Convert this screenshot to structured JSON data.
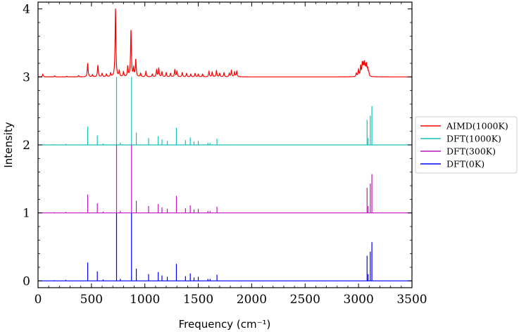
{
  "chart_data": {
    "type": "line",
    "title": "",
    "xlabel": "Frequency (cm⁻¹)",
    "ylabel": "Intensity",
    "xlim": [
      0,
      3500
    ],
    "ylim": [
      -0.1,
      4.1
    ],
    "xticks": [
      0,
      500,
      1000,
      1500,
      2000,
      2500,
      3000,
      3500
    ],
    "yticks": [
      0,
      1,
      2,
      3,
      4
    ],
    "grid": false,
    "legend_position": "outside-right",
    "series": [
      {
        "name": "AIMD(1000K)",
        "color": "#ff0000",
        "kind": "broadened",
        "baseline": 3.0,
        "peaks": [
          [
            45,
            0.04
          ],
          [
            155,
            0.015
          ],
          [
            270,
            0.01
          ],
          [
            380,
            0.02
          ],
          [
            465,
            0.2
          ],
          [
            510,
            0.03
          ],
          [
            560,
            0.17
          ],
          [
            600,
            0.05
          ],
          [
            640,
            0.04
          ],
          [
            680,
            0.05
          ],
          [
            725,
            1.0
          ],
          [
            760,
            0.08
          ],
          [
            800,
            0.07
          ],
          [
            840,
            0.15
          ],
          [
            870,
            0.68
          ],
          [
            895,
            0.12
          ],
          [
            915,
            0.25
          ],
          [
            960,
            0.05
          ],
          [
            1010,
            0.08
          ],
          [
            1070,
            0.04
          ],
          [
            1110,
            0.1
          ],
          [
            1130,
            0.12
          ],
          [
            1160,
            0.07
          ],
          [
            1200,
            0.06
          ],
          [
            1240,
            0.05
          ],
          [
            1280,
            0.1
          ],
          [
            1300,
            0.08
          ],
          [
            1350,
            0.06
          ],
          [
            1390,
            0.05
          ],
          [
            1430,
            0.04
          ],
          [
            1470,
            0.05
          ],
          [
            1500,
            0.04
          ],
          [
            1540,
            0.04
          ],
          [
            1600,
            0.08
          ],
          [
            1630,
            0.07
          ],
          [
            1670,
            0.09
          ],
          [
            1700,
            0.05
          ],
          [
            1740,
            0.06
          ],
          [
            1790,
            0.05
          ],
          [
            1810,
            0.09
          ],
          [
            1840,
            0.07
          ],
          [
            1860,
            0.08
          ],
          [
            2980,
            0.05
          ],
          [
            3000,
            0.1
          ],
          [
            3020,
            0.15
          ],
          [
            3035,
            0.18
          ],
          [
            3045,
            0.14
          ],
          [
            3055,
            0.18
          ],
          [
            3065,
            0.12
          ],
          [
            3075,
            0.16
          ],
          [
            3085,
            0.1
          ],
          [
            3095,
            0.06
          ]
        ]
      },
      {
        "name": "DFT(1000K)",
        "color": "#17bfbf",
        "kind": "sticks",
        "baseline": 2.0,
        "peaks": [
          [
            150,
            0.01
          ],
          [
            260,
            0.015
          ],
          [
            465,
            0.27
          ],
          [
            555,
            0.14
          ],
          [
            610,
            0.02
          ],
          [
            735,
            1.0
          ],
          [
            770,
            0.03
          ],
          [
            875,
            1.0
          ],
          [
            920,
            0.18
          ],
          [
            1035,
            0.1
          ],
          [
            1125,
            0.13
          ],
          [
            1160,
            0.08
          ],
          [
            1210,
            0.06
          ],
          [
            1295,
            0.25
          ],
          [
            1380,
            0.07
          ],
          [
            1425,
            0.11
          ],
          [
            1460,
            0.05
          ],
          [
            1500,
            0.06
          ],
          [
            1590,
            0.03
          ],
          [
            1610,
            0.03
          ],
          [
            1675,
            0.09
          ],
          [
            3080,
            0.37
          ],
          [
            3090,
            0.1
          ],
          [
            3110,
            0.43
          ],
          [
            3125,
            0.57
          ]
        ]
      },
      {
        "name": "DFT(300K)",
        "color": "#bf17bf",
        "kind": "sticks",
        "baseline": 1.0,
        "peaks": [
          [
            150,
            0.01
          ],
          [
            260,
            0.015
          ],
          [
            465,
            0.27
          ],
          [
            555,
            0.14
          ],
          [
            610,
            0.02
          ],
          [
            735,
            1.0
          ],
          [
            770,
            0.03
          ],
          [
            875,
            1.0
          ],
          [
            920,
            0.18
          ],
          [
            1035,
            0.1
          ],
          [
            1125,
            0.13
          ],
          [
            1160,
            0.08
          ],
          [
            1210,
            0.06
          ],
          [
            1295,
            0.25
          ],
          [
            1380,
            0.07
          ],
          [
            1425,
            0.11
          ],
          [
            1460,
            0.05
          ],
          [
            1500,
            0.06
          ],
          [
            1590,
            0.03
          ],
          [
            1610,
            0.03
          ],
          [
            1675,
            0.09
          ],
          [
            3080,
            0.37
          ],
          [
            3090,
            0.1
          ],
          [
            3110,
            0.43
          ],
          [
            3125,
            0.57
          ]
        ]
      },
      {
        "name": "DFT(0K)",
        "color": "#0000ff",
        "kind": "sticks",
        "baseline": 0.0,
        "peaks": [
          [
            150,
            0.01
          ],
          [
            260,
            0.015
          ],
          [
            465,
            0.27
          ],
          [
            555,
            0.14
          ],
          [
            610,
            0.02
          ],
          [
            735,
            1.0
          ],
          [
            770,
            0.03
          ],
          [
            875,
            1.0
          ],
          [
            920,
            0.18
          ],
          [
            1035,
            0.1
          ],
          [
            1125,
            0.13
          ],
          [
            1160,
            0.08
          ],
          [
            1210,
            0.06
          ],
          [
            1295,
            0.25
          ],
          [
            1380,
            0.07
          ],
          [
            1425,
            0.11
          ],
          [
            1460,
            0.05
          ],
          [
            1500,
            0.06
          ],
          [
            1590,
            0.03
          ],
          [
            1610,
            0.03
          ],
          [
            1675,
            0.09
          ],
          [
            3080,
            0.37
          ],
          [
            3090,
            0.1
          ],
          [
            3110,
            0.43
          ],
          [
            3125,
            0.57
          ]
        ]
      }
    ]
  }
}
